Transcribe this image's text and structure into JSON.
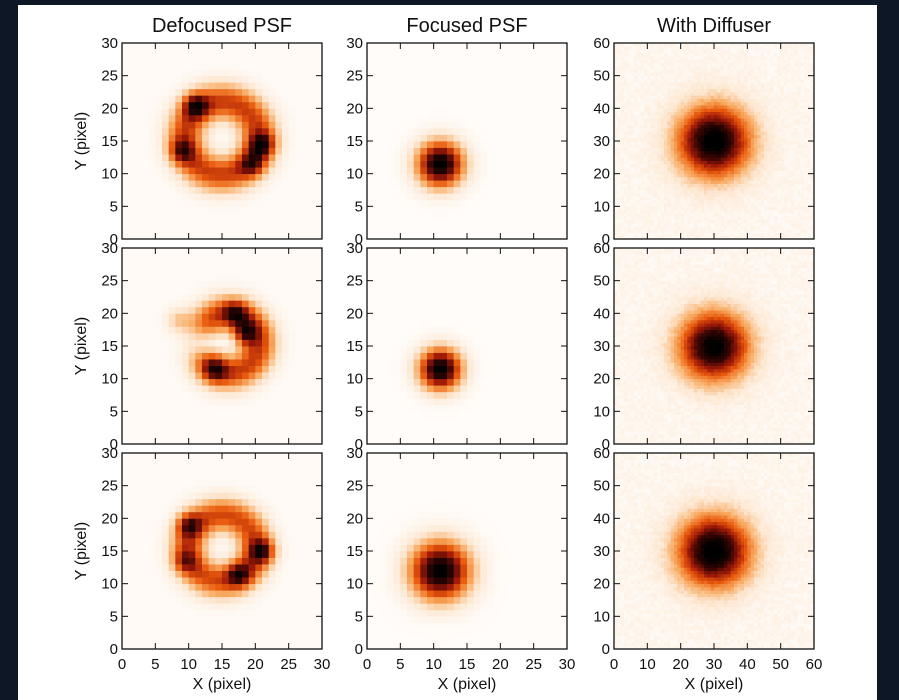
{
  "colors": {
    "outer_background": "#0d1726",
    "figure_background": "#ffffff",
    "colormap": [
      "#ffffff",
      "#fde6cf",
      "#f8a75c",
      "#e8590c",
      "#a11a08",
      "#3a0603",
      "#000000"
    ]
  },
  "chart_data": {
    "type": "heatmap",
    "layout": "3 rows x 3 columns",
    "columns": [
      {
        "title": "Defocused PSF",
        "xlim": [
          0,
          30
        ],
        "ylim": [
          0,
          30
        ],
        "xticks": [
          0,
          5,
          10,
          15,
          20,
          25,
          30
        ],
        "yticks": [
          0,
          5,
          10,
          15,
          20,
          25,
          30
        ],
        "xlabel": "X (pixel)",
        "ylabel": "Y (pixel)",
        "grid_size": 30,
        "panels": [
          {
            "pattern": "ring",
            "center": [
              15,
              15.5
            ],
            "ring_radius": 5.5,
            "ring_width": 2.0,
            "peak": 1.0,
            "background": 0.03,
            "hotspots": [
              [
                11,
                20.5,
                1.0
              ],
              [
                21,
                14.5,
                0.95
              ],
              [
                9,
                13.5,
                0.75
              ],
              [
                19.5,
                11.5,
                0.7
              ]
            ]
          },
          {
            "pattern": "horseshoe",
            "center": [
              16,
              15.5
            ],
            "ring_radius": 4.5,
            "ring_width": 1.9,
            "peak": 1.0,
            "background": 0.03,
            "hotspots": [
              [
                18.5,
                17,
                1.0
              ],
              [
                17,
                20,
                0.8
              ],
              [
                14,
                11.5,
                0.8
              ],
              [
                8.5,
                19,
                0.4
              ]
            ]
          },
          {
            "pattern": "ring",
            "center": [
              15,
              15.5
            ],
            "ring_radius": 5.0,
            "ring_width": 1.9,
            "peak": 0.95,
            "background": 0.03,
            "hotspots": [
              [
                21,
                15,
                1.0
              ],
              [
                10,
                19,
                0.85
              ],
              [
                17.5,
                11.5,
                0.85
              ],
              [
                9.5,
                13.5,
                0.6
              ]
            ]
          }
        ]
      },
      {
        "title": "Focused PSF",
        "xlim": [
          0,
          30
        ],
        "ylim": [
          0,
          30
        ],
        "xticks": [
          0,
          5,
          10,
          15,
          20,
          25,
          30
        ],
        "yticks": [
          0,
          5,
          10,
          15,
          20,
          25,
          30
        ],
        "xlabel": "X (pixel)",
        "ylabel": "",
        "grid_size": 30,
        "panels": [
          {
            "pattern": "spot",
            "center": [
              11,
              11.5
            ],
            "sigma": 2.4,
            "peak": 1.0,
            "background": 0.02
          },
          {
            "pattern": "spot",
            "center": [
              11,
              11.5
            ],
            "sigma": 2.2,
            "peak": 1.0,
            "background": 0.02
          },
          {
            "pattern": "spot",
            "center": [
              11,
              12
            ],
            "sigma": 3.1,
            "peak": 1.0,
            "background": 0.02
          }
        ]
      },
      {
        "title": "With Diffuser",
        "xlim": [
          0,
          60
        ],
        "ylim": [
          0,
          60
        ],
        "xticks": [
          0,
          10,
          20,
          30,
          40,
          50,
          60
        ],
        "yticks": [
          0,
          10,
          20,
          30,
          40,
          50,
          60
        ],
        "xlabel": "X (pixel)",
        "ylabel": "",
        "grid_size": 60,
        "panels": [
          {
            "pattern": "spot",
            "center": [
              30,
              30
            ],
            "sigma": 7.5,
            "peak": 1.0,
            "background": 0.06,
            "noise": 0.03
          },
          {
            "pattern": "spot",
            "center": [
              30,
              30
            ],
            "sigma": 7.2,
            "peak": 0.97,
            "background": 0.06,
            "noise": 0.03
          },
          {
            "pattern": "spot",
            "center": [
              30,
              30
            ],
            "sigma": 7.5,
            "peak": 1.0,
            "background": 0.06,
            "noise": 0.03
          }
        ]
      }
    ]
  }
}
